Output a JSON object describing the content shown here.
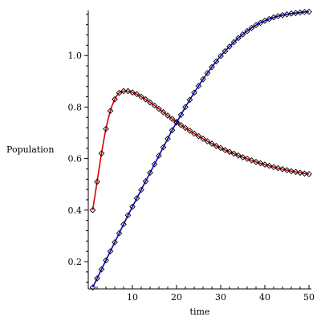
{
  "chart_data": {
    "type": "line",
    "xlabel": "time",
    "ylabel": "Population",
    "xlim": [
      0,
      50
    ],
    "ylim": [
      0.1,
      1.18
    ],
    "x_ticks": [
      10,
      20,
      30,
      40,
      50
    ],
    "y_ticks": [
      0.2,
      0.4,
      0.6,
      0.8,
      1.0
    ],
    "y_tick_labels": [
      "0.2",
      "0.4",
      "0.6",
      "0.8",
      "1.0"
    ],
    "grid": false,
    "series": [
      {
        "color": "#dd0000",
        "marker": "diamond",
        "x": [
          1,
          2,
          3,
          4,
          5,
          6,
          7,
          8,
          9,
          10,
          11,
          12,
          13,
          14,
          15,
          16,
          17,
          18,
          19,
          20,
          21,
          22,
          23,
          24,
          25,
          26,
          27,
          28,
          29,
          30,
          31,
          32,
          33,
          34,
          35,
          36,
          37,
          38,
          39,
          40,
          41,
          42,
          43,
          44,
          45,
          46,
          47,
          48,
          49,
          50
        ],
        "values": [
          0.4,
          0.51,
          0.62,
          0.715,
          0.785,
          0.83,
          0.855,
          0.862,
          0.862,
          0.857,
          0.85,
          0.84,
          0.83,
          0.818,
          0.806,
          0.793,
          0.78,
          0.767,
          0.754,
          0.742,
          0.73,
          0.719,
          0.708,
          0.697,
          0.687,
          0.677,
          0.667,
          0.658,
          0.649,
          0.641,
          0.633,
          0.626,
          0.619,
          0.612,
          0.605,
          0.599,
          0.593,
          0.587,
          0.582,
          0.577,
          0.572,
          0.567,
          0.563,
          0.559,
          0.555,
          0.551,
          0.548,
          0.545,
          0.542,
          0.54
        ]
      },
      {
        "color": "#0000cc",
        "marker": "diamond",
        "x": [
          1,
          2,
          3,
          4,
          5,
          6,
          7,
          8,
          9,
          10,
          11,
          12,
          13,
          14,
          15,
          16,
          17,
          18,
          19,
          20,
          21,
          22,
          23,
          24,
          25,
          26,
          27,
          28,
          29,
          30,
          31,
          32,
          33,
          34,
          35,
          36,
          37,
          38,
          39,
          40,
          41,
          42,
          43,
          44,
          45,
          46,
          47,
          48,
          49,
          50
        ],
        "values": [
          0.1,
          0.135,
          0.17,
          0.205,
          0.24,
          0.275,
          0.31,
          0.345,
          0.38,
          0.413,
          0.446,
          0.479,
          0.512,
          0.545,
          0.578,
          0.611,
          0.644,
          0.677,
          0.71,
          0.74,
          0.77,
          0.8,
          0.828,
          0.856,
          0.882,
          0.908,
          0.932,
          0.955,
          0.977,
          0.998,
          1.017,
          1.035,
          1.052,
          1.068,
          1.082,
          1.095,
          1.107,
          1.118,
          1.127,
          1.135,
          1.142,
          1.148,
          1.153,
          1.157,
          1.16,
          1.163,
          1.165,
          1.167,
          1.169,
          1.17
        ]
      }
    ]
  }
}
